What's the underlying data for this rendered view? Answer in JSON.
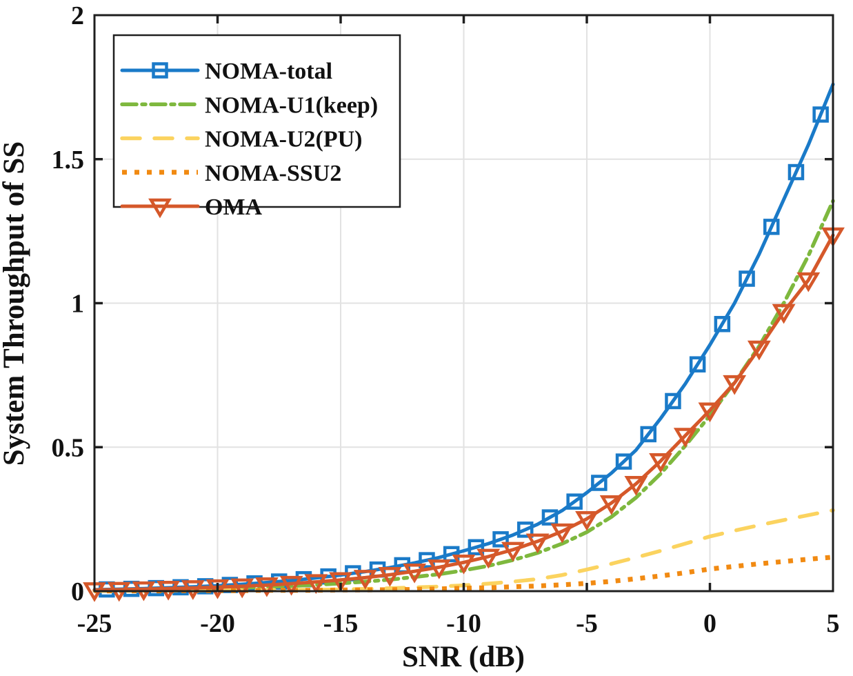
{
  "figure": {
    "xlabel": "SNR (dB)",
    "ylabel": "System Throughput of SS"
  },
  "colors": {
    "background": "#ffffff",
    "grid": "#e2e2e2",
    "axis_box": "#1f1f1f",
    "text": "#111111"
  },
  "chart_data": {
    "type": "line",
    "title": "",
    "xlabel": "SNR (dB)",
    "ylabel": "System Throughput of SS",
    "xlim": [
      -25,
      5
    ],
    "ylim": [
      0,
      2
    ],
    "xticks": [
      -25,
      -20,
      -15,
      -10,
      -5,
      0,
      5
    ],
    "xtick_labels": [
      "-25",
      "-20",
      "-15",
      "-10",
      "-5",
      "0",
      "5"
    ],
    "yticks": [
      0,
      0.5,
      1,
      1.5,
      2
    ],
    "ytick_labels": [
      "0",
      "0.5",
      "1",
      "1.5",
      "2"
    ],
    "grid": true,
    "legend_position": "top-left",
    "x": [
      -25,
      -24,
      -23,
      -22,
      -21,
      -20,
      -19,
      -18,
      -17,
      -16,
      -15,
      -14,
      -13,
      -12,
      -11,
      -10,
      -9,
      -8,
      -7,
      -6,
      -5,
      -4,
      -3,
      -2,
      -1,
      0,
      1,
      2,
      3,
      4,
      5
    ],
    "series": [
      {
        "name": "NOMA-total",
        "color": "#1a7ac8",
        "line": "solid",
        "marker": "square",
        "marker_phase": 0.5,
        "values": [
          0.005,
          0.007,
          0.009,
          0.012,
          0.015,
          0.019,
          0.024,
          0.03,
          0.037,
          0.046,
          0.056,
          0.068,
          0.082,
          0.098,
          0.117,
          0.14,
          0.165,
          0.195,
          0.232,
          0.28,
          0.342,
          0.41,
          0.49,
          0.6,
          0.72,
          0.855,
          1.0,
          1.17,
          1.36,
          1.55,
          1.76
        ]
      },
      {
        "name": "NOMA-U1(keep)",
        "color": "#7eb83e",
        "line": "dashdot",
        "marker": "none",
        "marker_phase": 0,
        "values": [
          0.003,
          0.004,
          0.005,
          0.006,
          0.008,
          0.01,
          0.012,
          0.015,
          0.018,
          0.022,
          0.027,
          0.033,
          0.04,
          0.049,
          0.059,
          0.072,
          0.088,
          0.108,
          0.133,
          0.165,
          0.205,
          0.258,
          0.325,
          0.408,
          0.505,
          0.61,
          0.725,
          0.85,
          1.0,
          1.165,
          1.355
        ]
      },
      {
        "name": "NOMA-U2(PU)",
        "color": "#fbd35f",
        "line": "dashed",
        "marker": "none",
        "marker_phase": 0,
        "values": [
          0.001,
          0.001,
          0.002,
          0.002,
          0.002,
          0.003,
          0.003,
          0.004,
          0.004,
          0.005,
          0.006,
          0.008,
          0.01,
          0.013,
          0.016,
          0.02,
          0.026,
          0.033,
          0.042,
          0.056,
          0.075,
          0.095,
          0.117,
          0.14,
          0.165,
          0.19,
          0.21,
          0.229,
          0.247,
          0.264,
          0.281
        ]
      },
      {
        "name": "NOMA-SSU2",
        "color": "#f18a12",
        "line": "dotted",
        "marker": "none",
        "marker_phase": 0,
        "values": [
          0.001,
          0.001,
          0.001,
          0.001,
          0.002,
          0.002,
          0.002,
          0.003,
          0.003,
          0.003,
          0.004,
          0.004,
          0.005,
          0.006,
          0.008,
          0.01,
          0.012,
          0.015,
          0.018,
          0.022,
          0.027,
          0.034,
          0.043,
          0.053,
          0.064,
          0.077,
          0.086,
          0.095,
          0.103,
          0.111,
          0.118
        ]
      },
      {
        "name": "OMA",
        "color": "#d5582a",
        "line": "solid",
        "marker": "triangle-down",
        "marker_phase": 0,
        "values": [
          0.004,
          0.005,
          0.007,
          0.009,
          0.011,
          0.014,
          0.017,
          0.021,
          0.026,
          0.032,
          0.039,
          0.047,
          0.057,
          0.069,
          0.083,
          0.1,
          0.12,
          0.144,
          0.173,
          0.208,
          0.251,
          0.306,
          0.373,
          0.452,
          0.54,
          0.628,
          0.723,
          0.843,
          0.97,
          1.08,
          1.236
        ]
      }
    ]
  }
}
